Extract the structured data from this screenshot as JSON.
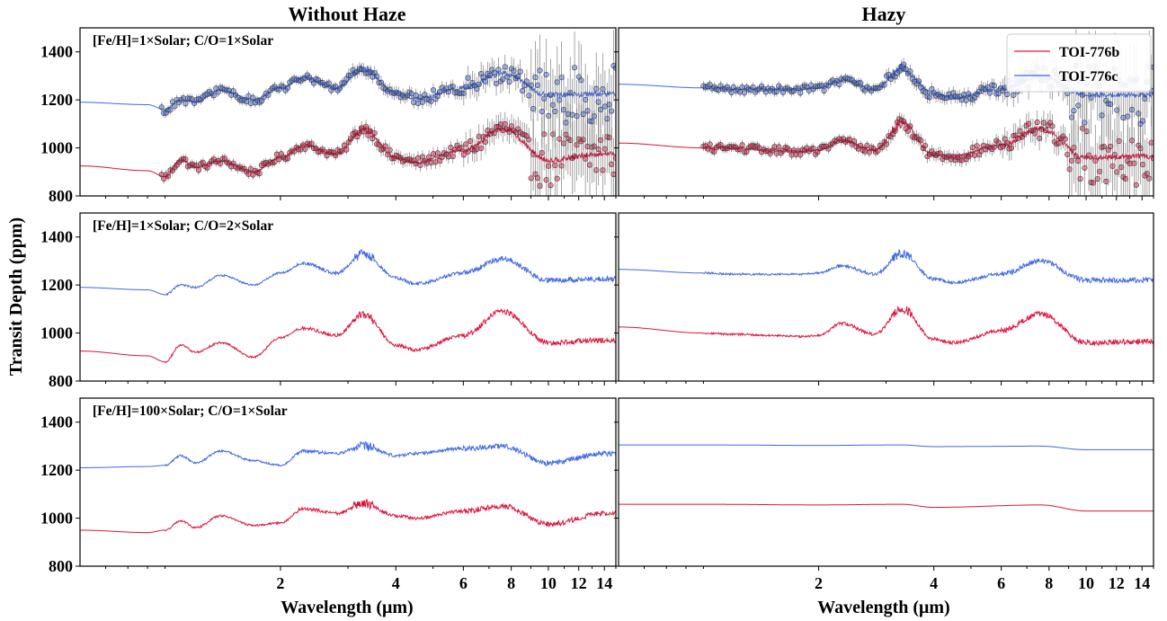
{
  "figure": {
    "column_titles": [
      "Without Haze",
      "Hazy"
    ],
    "ylabel": "Transit Depth (ppm)",
    "xlabel": "Wavelength (μm)",
    "legend": [
      "TOI-776b",
      "TOI-776c"
    ]
  },
  "chart_data": {
    "type": "line",
    "layout": "3x2 grid of panels, shared axes",
    "x_scale": "log",
    "xlim": [
      0.6,
      15
    ],
    "ylim": [
      800,
      1500
    ],
    "y_ticks": [
      800,
      1000,
      1200,
      1400
    ],
    "x_ticks": [
      2,
      4,
      6,
      8,
      10,
      12,
      14
    ],
    "legend_position": "top-right of hazy row 1 panel",
    "colors": {
      "TOI-776b": "#dc143c",
      "TOI-776c": "#4169e1",
      "data_points": "#808080"
    },
    "series": [
      {
        "name": "TOI-776b",
        "color": "#dc143c"
      },
      {
        "name": "TOI-776c",
        "color": "#4169e1"
      }
    ],
    "panels": [
      {
        "row": 1,
        "col": "Without Haze",
        "label": "[Fe/H]=1×Solar; C/O=1×Solar",
        "simulated_data": true,
        "TOI-776b": {
          "x": [
            0.6,
            0.9,
            1.0,
            1.1,
            1.2,
            1.4,
            1.7,
            2.0,
            2.3,
            2.8,
            3.3,
            4.0,
            4.5,
            6.0,
            7.6,
            10,
            14
          ],
          "y": [
            925,
            905,
            880,
            950,
            920,
            945,
            900,
            960,
            1010,
            975,
            1080,
            960,
            940,
            990,
            1080,
            950,
            975
          ]
        },
        "TOI-776c": {
          "x": [
            0.6,
            0.9,
            1.0,
            1.1,
            1.2,
            1.4,
            1.7,
            2.0,
            2.3,
            2.8,
            3.3,
            4.0,
            4.5,
            6.0,
            7.6,
            10,
            14
          ],
          "y": [
            1190,
            1180,
            1160,
            1200,
            1190,
            1240,
            1200,
            1250,
            1290,
            1250,
            1330,
            1230,
            1205,
            1250,
            1310,
            1220,
            1225
          ]
        }
      },
      {
        "row": 1,
        "col": "Hazy",
        "label": "",
        "simulated_data": true,
        "TOI-776b": {
          "x": [
            0.6,
            1.0,
            1.2,
            1.5,
            1.8,
            2.0,
            2.3,
            2.8,
            3.3,
            4.0,
            4.5,
            6.0,
            7.6,
            10,
            14
          ],
          "y": [
            1020,
            1000,
            1000,
            990,
            985,
            990,
            1030,
            990,
            1100,
            970,
            965,
            1010,
            1080,
            960,
            965
          ]
        },
        "TOI-776c": {
          "x": [
            0.6,
            1.0,
            1.2,
            1.5,
            1.8,
            2.0,
            2.3,
            2.8,
            3.3,
            4.0,
            4.5,
            6.0,
            7.6,
            10,
            14
          ],
          "y": [
            1265,
            1250,
            1245,
            1245,
            1245,
            1250,
            1280,
            1245,
            1330,
            1225,
            1210,
            1245,
            1300,
            1220,
            1220
          ]
        }
      },
      {
        "row": 2,
        "col": "Without Haze",
        "label": "[Fe/H]=1×Solar; C/O=2×Solar",
        "simulated_data": false,
        "TOI-776b": {
          "x": [
            0.6,
            0.9,
            1.0,
            1.1,
            1.2,
            1.4,
            1.7,
            2.0,
            2.3,
            2.8,
            3.3,
            4.0,
            4.5,
            6.0,
            7.6,
            10,
            14
          ],
          "y": [
            925,
            905,
            880,
            950,
            920,
            960,
            900,
            980,
            1020,
            990,
            1080,
            950,
            930,
            990,
            1090,
            960,
            970
          ]
        },
        "TOI-776c": {
          "x": [
            0.6,
            0.9,
            1.0,
            1.1,
            1.2,
            1.4,
            1.7,
            2.0,
            2.3,
            2.8,
            3.3,
            4.0,
            4.5,
            6.0,
            7.6,
            10,
            14
          ],
          "y": [
            1190,
            1180,
            1160,
            1200,
            1190,
            1240,
            1200,
            1250,
            1290,
            1250,
            1330,
            1230,
            1205,
            1250,
            1310,
            1220,
            1225
          ]
        }
      },
      {
        "row": 2,
        "col": "Hazy",
        "label": "",
        "simulated_data": false,
        "TOI-776b": {
          "x": [
            0.6,
            1.0,
            1.2,
            1.5,
            1.8,
            2.0,
            2.3,
            2.8,
            3.3,
            4.0,
            4.5,
            6.0,
            7.6,
            10,
            14
          ],
          "y": [
            1025,
            1000,
            995,
            990,
            985,
            990,
            1040,
            995,
            1100,
            975,
            960,
            1010,
            1080,
            960,
            965
          ]
        },
        "TOI-776c": {
          "x": [
            0.6,
            1.0,
            1.2,
            1.5,
            1.8,
            2.0,
            2.3,
            2.8,
            3.3,
            4.0,
            4.5,
            6.0,
            7.6,
            10,
            14
          ],
          "y": [
            1265,
            1250,
            1245,
            1245,
            1245,
            1250,
            1280,
            1245,
            1330,
            1225,
            1210,
            1245,
            1300,
            1220,
            1220
          ]
        }
      },
      {
        "row": 3,
        "col": "Without Haze",
        "label": "[Fe/H]=100×Solar; C/O=1×Solar",
        "simulated_data": false,
        "TOI-776b": {
          "x": [
            0.6,
            0.9,
            1.0,
            1.1,
            1.2,
            1.4,
            1.7,
            2.0,
            2.3,
            2.8,
            3.3,
            4.0,
            4.5,
            6.0,
            7.6,
            10,
            14
          ],
          "y": [
            950,
            940,
            950,
            990,
            960,
            1010,
            970,
            980,
            1040,
            1020,
            1060,
            1010,
            1000,
            1030,
            1050,
            975,
            1020
          ]
        },
        "TOI-776c": {
          "x": [
            0.6,
            0.9,
            1.0,
            1.1,
            1.2,
            1.4,
            1.7,
            2.0,
            2.3,
            2.8,
            3.3,
            4.0,
            4.5,
            6.0,
            7.6,
            10,
            14
          ],
          "y": [
            1210,
            1215,
            1220,
            1260,
            1230,
            1280,
            1240,
            1220,
            1280,
            1270,
            1300,
            1260,
            1270,
            1290,
            1300,
            1230,
            1270
          ]
        }
      },
      {
        "row": 3,
        "col": "Hazy",
        "label": "",
        "simulated_data": false,
        "TOI-776b": {
          "x": [
            0.6,
            1.0,
            2.0,
            3.3,
            4.0,
            7.6,
            10,
            14
          ],
          "y": [
            1058,
            1058,
            1055,
            1058,
            1045,
            1055,
            1030,
            1030
          ]
        },
        "TOI-776c": {
          "x": [
            0.6,
            1.0,
            2.0,
            3.3,
            4.0,
            7.6,
            10,
            14
          ],
          "y": [
            1305,
            1305,
            1303,
            1305,
            1298,
            1300,
            1285,
            1285
          ]
        }
      }
    ]
  }
}
